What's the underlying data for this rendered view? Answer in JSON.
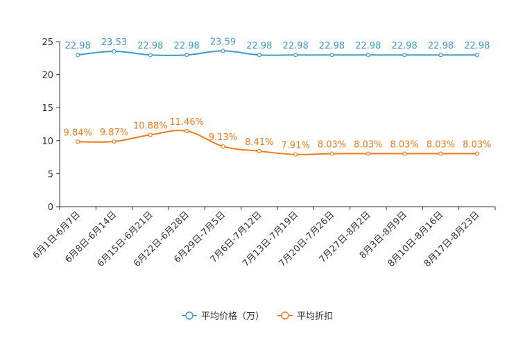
{
  "chart_data": {
    "type": "line",
    "categories": [
      "6月1日-6月7日",
      "6月8日-6月14日",
      "6月15日-6月21日",
      "6月22日-6月28日",
      "6月29日-7月5日",
      "7月6日-7月12日",
      "7月13日-7月19日",
      "7月20日-7月26日",
      "7月27日-8月2日",
      "8月3日-8月9日",
      "8月10日-8月16日",
      "8月17日-8月23日"
    ],
    "series": [
      {
        "name": "平均价格（万）",
        "color": "#3d9ccc",
        "values": [
          22.98,
          23.53,
          22.98,
          22.98,
          23.59,
          22.98,
          22.98,
          22.98,
          22.98,
          22.98,
          22.98,
          22.98
        ],
        "labels": [
          "22.98",
          "23.53",
          "22.98",
          "22.98",
          "23.59",
          "22.98",
          "22.98",
          "22.98",
          "22.98",
          "22.98",
          "22.98",
          "22.98"
        ]
      },
      {
        "name": "平均折扣",
        "color": "#f57a14",
        "values": [
          9.84,
          9.87,
          10.88,
          11.46,
          9.13,
          8.41,
          7.91,
          8.03,
          8.03,
          8.03,
          8.03,
          8.03
        ],
        "labels": [
          "9.84%",
          "9.87%",
          "10.88%",
          "11.46%",
          "9.13%",
          "8.41%",
          "7.91%",
          "8.03%",
          "8.03%",
          "8.03%",
          "8.03%",
          "8.03%"
        ]
      }
    ],
    "yticks": [
      "0",
      "5",
      "10",
      "15",
      "20",
      "25"
    ],
    "ylim": [
      0,
      25
    ],
    "title": "",
    "xlabel": "",
    "ylabel": "",
    "legend_position": "bottom"
  }
}
